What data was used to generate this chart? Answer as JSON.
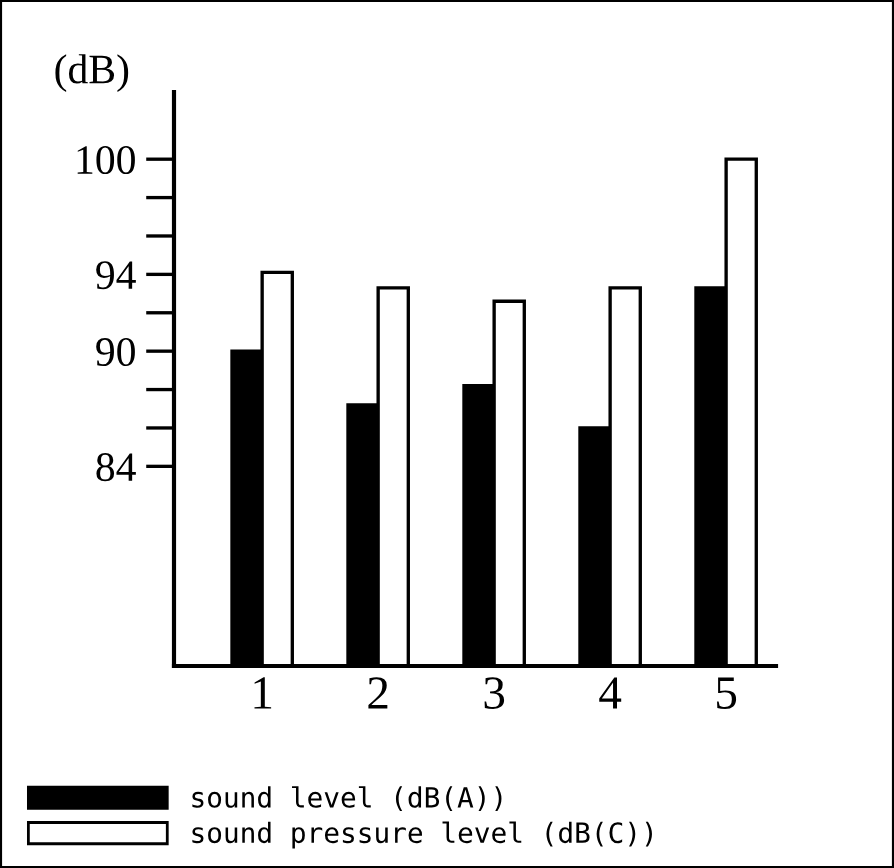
{
  "chart_data": {
    "type": "bar",
    "ylabel": "(dB)",
    "categories": [
      "1",
      "2",
      "3",
      "4",
      "5"
    ],
    "series": [
      {
        "name": "sound level (dB(A))",
        "color": "#000000",
        "values": [
          90.0,
          87.2,
          88.2,
          86.0,
          93.3
        ]
      },
      {
        "name": "sound pressure level (dB(C))",
        "color": "#ffffff",
        "values": [
          94.1,
          93.3,
          92.6,
          93.3,
          100.0
        ]
      }
    ],
    "ylim": [
      73.6,
      103.5
    ],
    "yticks": [
      {
        "value": 84,
        "label": "84"
      },
      {
        "value": 86,
        "label": null
      },
      {
        "value": 88,
        "label": null
      },
      {
        "value": 90,
        "label": "90"
      },
      {
        "value": 92,
        "label": null
      },
      {
        "value": 94,
        "label": "94"
      },
      {
        "value": 96,
        "label": null
      },
      {
        "value": 98,
        "label": null
      },
      {
        "value": 100,
        "label": "100"
      }
    ],
    "grid": false,
    "legend": "bottom"
  }
}
